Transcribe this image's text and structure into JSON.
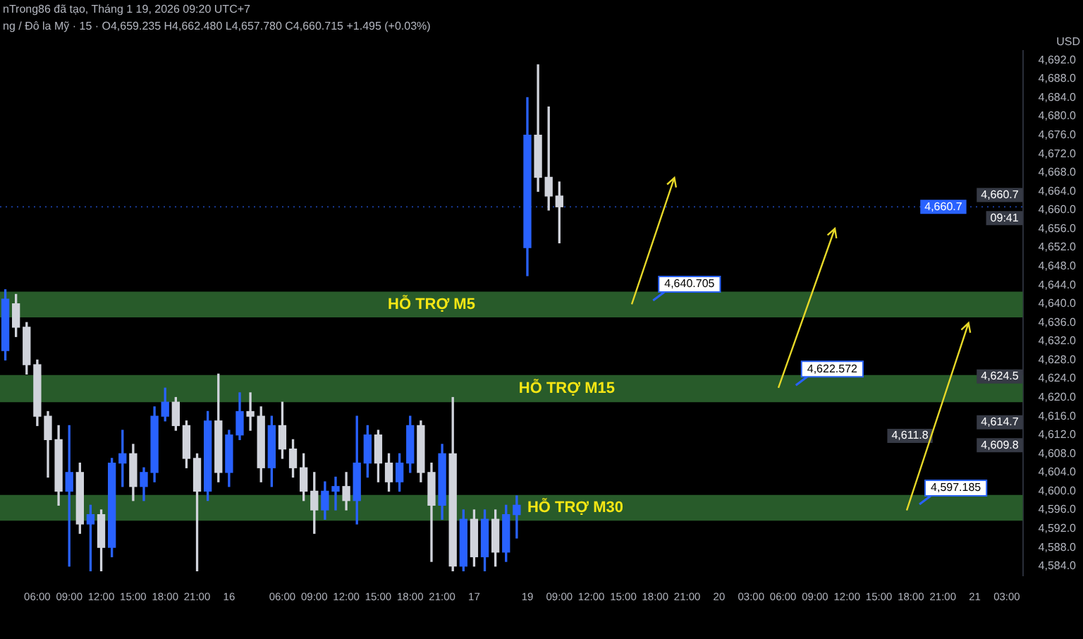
{
  "chart_data": {
    "type": "candlestick",
    "categories": [
      null,
      null,
      null,
      "06:00",
      null,
      null,
      "09:00",
      null,
      null,
      "12:00",
      null,
      null,
      "15:00",
      null,
      null,
      "18:00",
      null,
      null,
      "21:00",
      null,
      null,
      "16",
      null,
      null,
      null,
      null,
      "06:00",
      null,
      null,
      "09:00",
      null,
      null,
      "12:00",
      null,
      null,
      "15:00",
      null,
      null,
      "18:00",
      null,
      null,
      "21:00",
      null,
      null,
      "17",
      null,
      null,
      null,
      null,
      "19",
      null,
      null,
      "09:00",
      null,
      null,
      "12:00",
      null,
      null,
      "15:00",
      null,
      null,
      "18:00",
      null,
      null,
      "21:00",
      null,
      null,
      "20",
      null,
      null,
      "03:00",
      null,
      null,
      "06:00",
      null,
      null,
      "09:00",
      null,
      null,
      "12:00",
      null,
      null,
      "15:00",
      null,
      null,
      "18:00",
      null,
      null,
      "21:00",
      null,
      null,
      "21",
      null,
      null,
      "03:00",
      null
    ],
    "ohlc": [
      [
        4630,
        4643,
        4628,
        4641
      ],
      [
        4640,
        4642,
        4633,
        4635
      ],
      [
        4635,
        4636,
        4625,
        4627
      ],
      [
        4627,
        4628,
        4614,
        4616
      ],
      [
        4616,
        4617,
        4603,
        4611
      ],
      [
        4611,
        4614,
        4597,
        4600
      ],
      [
        4600,
        4614,
        4584,
        4604
      ],
      [
        4604,
        4606,
        4591,
        4593
      ],
      [
        4593,
        4597,
        4583,
        4595
      ],
      [
        4595,
        4596,
        4583,
        4588
      ],
      [
        4588,
        4607,
        4586,
        4606
      ],
      [
        4606,
        4613,
        4601,
        4608
      ],
      [
        4608,
        4610,
        4598,
        4601
      ],
      [
        4601,
        4605,
        4598,
        4604
      ],
      [
        4604,
        4618,
        4602,
        4616
      ],
      [
        4616,
        4622,
        4615,
        4619
      ],
      [
        4619,
        4620,
        4613,
        4614
      ],
      [
        4614,
        4615,
        4605,
        4607
      ],
      [
        4607,
        4608,
        4583,
        4600
      ],
      [
        4600,
        4617,
        4598,
        4615
      ],
      [
        4615,
        4625,
        4602,
        4604
      ],
      [
        4604,
        4613,
        4601,
        4612
      ],
      [
        4612,
        4621,
        4611,
        4617
      ],
      [
        4617,
        4621,
        4613,
        4616
      ],
      [
        4616,
        4618,
        4602,
        4605
      ],
      [
        4605,
        4616,
        4601,
        4614
      ],
      [
        4614,
        4619,
        4607,
        4609
      ],
      [
        4609,
        4611,
        4603,
        4605
      ],
      [
        4605,
        4608,
        4598,
        4600
      ],
      [
        4600,
        4604,
        4591,
        4596
      ],
      [
        4596,
        4602,
        4594,
        4600
      ],
      [
        4600,
        4603,
        4596,
        4601
      ],
      [
        4601,
        4604,
        4596,
        4598
      ],
      [
        4598,
        4616,
        4593,
        4606
      ],
      [
        4606,
        4614,
        4603,
        4612
      ],
      [
        4612,
        4613,
        4602,
        4606
      ],
      [
        4606,
        4608,
        4600,
        4602
      ],
      [
        4602,
        4608,
        4600,
        4606
      ],
      [
        4606,
        4616,
        4604,
        4614
      ],
      [
        4614,
        4615,
        4602,
        4604
      ],
      [
        4604,
        4606,
        4585,
        4597
      ],
      [
        4597,
        4610,
        4594,
        4608
      ],
      [
        4608,
        4620,
        4583,
        4584
      ],
      [
        4584,
        4596,
        4583,
        4594
      ],
      [
        4594,
        4596,
        4584,
        4586
      ],
      [
        4586,
        4596,
        4583,
        4594
      ],
      [
        4594,
        4596,
        4584,
        4587
      ],
      [
        4587,
        4597,
        4585,
        4595
      ],
      [
        4595,
        4599,
        4590,
        4597
      ],
      [
        4652,
        4684,
        4646,
        4676
      ],
      [
        4676,
        4691,
        4664,
        4667
      ],
      [
        4667,
        4682,
        4660,
        4663
      ],
      [
        4663,
        4666,
        4653,
        4660.7
      ],
      null,
      null,
      null,
      null,
      null,
      null,
      null,
      null,
      null,
      null,
      null,
      null,
      null,
      null,
      null,
      null,
      null,
      null,
      null,
      null,
      null,
      null,
      null,
      null,
      null,
      null,
      null,
      null,
      null,
      null,
      null,
      null,
      null,
      null,
      null,
      null,
      null,
      null,
      null,
      null,
      null,
      null,
      null
    ],
    "colors": [
      "#2962ff",
      "#d1d4dc",
      "#d1d4dc",
      "#d1d4dc",
      "#d1d4dc",
      "#d1d4dc",
      "#2962ff",
      "#d1d4dc",
      "#2962ff",
      "#d1d4dc",
      "#2962ff",
      "#2962ff",
      "#d1d4dc",
      "#2962ff",
      "#2962ff",
      "#2962ff",
      "#d1d4dc",
      "#d1d4dc",
      "#d1d4dc",
      "#2962ff",
      "#d1d4dc",
      "#2962ff",
      "#2962ff",
      "#d1d4dc",
      "#d1d4dc",
      "#2962ff",
      "#d1d4dc",
      "#d1d4dc",
      "#d1d4dc",
      "#d1d4dc",
      "#2962ff",
      "#2962ff",
      "#d1d4dc",
      "#2962ff",
      "#2962ff",
      "#d1d4dc",
      "#d1d4dc",
      "#2962ff",
      "#2962ff",
      "#d1d4dc",
      "#d1d4dc",
      "#2962ff",
      "#d1d4dc",
      "#2962ff",
      "#d1d4dc",
      "#2962ff",
      "#d1d4dc",
      "#2962ff",
      "#2962ff",
      "#2962ff",
      "#d1d4dc",
      "#d1d4dc",
      "#d1d4dc",
      null,
      null,
      null,
      null,
      null,
      null,
      null,
      null,
      null,
      null,
      null,
      null,
      null,
      null,
      null,
      null,
      null,
      null,
      null,
      null,
      null,
      null,
      null,
      null,
      null,
      null,
      null,
      null,
      null,
      null,
      null,
      null,
      null,
      null,
      null,
      null,
      null,
      null,
      null,
      null,
      null,
      null,
      null
    ],
    "ylim": [
      4582,
      4694
    ],
    "yticks": [
      {
        "value": 4584,
        "label": "4,584.0"
      },
      {
        "value": 4588,
        "label": "4,588.0"
      },
      {
        "value": 4592,
        "label": "4,592.0"
      },
      {
        "value": 4596,
        "label": "4,596.0"
      },
      {
        "value": 4600,
        "label": "4,600.0"
      },
      {
        "value": 4604,
        "label": "4,604.0"
      },
      {
        "value": 4608,
        "label": "4,608.0"
      },
      {
        "value": 4612,
        "label": "4,612.0"
      },
      {
        "value": 4616,
        "label": "4,616.0"
      },
      {
        "value": 4620,
        "label": "4,620.0"
      },
      {
        "value": 4624,
        "label": "4,624.0"
      },
      {
        "value": 4628,
        "label": "4,628.0"
      },
      {
        "value": 4632,
        "label": "4,632.0"
      },
      {
        "value": 4636,
        "label": "4,636.0"
      },
      {
        "value": 4640,
        "label": "4,640.0"
      },
      {
        "value": 4644,
        "label": "4,644.0"
      },
      {
        "value": 4648,
        "label": "4,648.0"
      },
      {
        "value": 4652,
        "label": "4,652.0"
      },
      {
        "value": 4656,
        "label": "4,656.0"
      },
      {
        "value": 4660,
        "label": "4,660.0"
      },
      {
        "value": 4664,
        "label": "4,664.0"
      },
      {
        "value": 4668,
        "label": "4,668.0"
      },
      {
        "value": 4672,
        "label": "4,672.0"
      },
      {
        "value": 4676,
        "label": "4,676.0"
      },
      {
        "value": 4680,
        "label": "4,680.0"
      },
      {
        "value": 4684,
        "label": "4,684.0"
      },
      {
        "value": 4688,
        "label": "4,688.0"
      },
      {
        "value": 4692,
        "label": "4,692.0"
      }
    ],
    "bands": [
      {
        "axis": "y",
        "from": 4637.1,
        "to": 4642.6,
        "label": "HỖ TRỢ M5",
        "color": "#285b2a"
      },
      {
        "axis": "y",
        "from": 4619,
        "to": 4624.8,
        "label": "HỖ TRỢ M15",
        "color": "#285b2a"
      },
      {
        "axis": "y",
        "from": 4593.7,
        "to": 4599.2,
        "label": "HỖ TRỢ M30",
        "color": "#285b2a"
      }
    ],
    "ref_lines": [
      {
        "axis": "y",
        "value": 4660.7,
        "label": "4,660.7",
        "color": "#2962ff",
        "line_style": "dotted"
      }
    ],
    "annotations": [
      "nTrong86 đã tạo, Tháng 1 19, 2026 09:20 UTC+7",
      "ng / Đô la Mỹ · 15 · O4,659.235 H4,662.480 L4,657.780 C4,660.715 +1.495 (+0.03%)",
      "USD",
      "4,640.705",
      "4,622.572",
      "4,597.185",
      {
        "text": "4,660.7",
        "y": 4663.2
      },
      {
        "text": "09:41",
        "y": 4658.3
      },
      {
        "text": "4,624.5",
        "y": 4624.5
      },
      {
        "text": "4,614.7",
        "y": 4614.7
      },
      {
        "text": "4,611.8",
        "y": 4611.8
      },
      {
        "text": "4,609.8",
        "y": 4609.8
      }
    ]
  }
}
